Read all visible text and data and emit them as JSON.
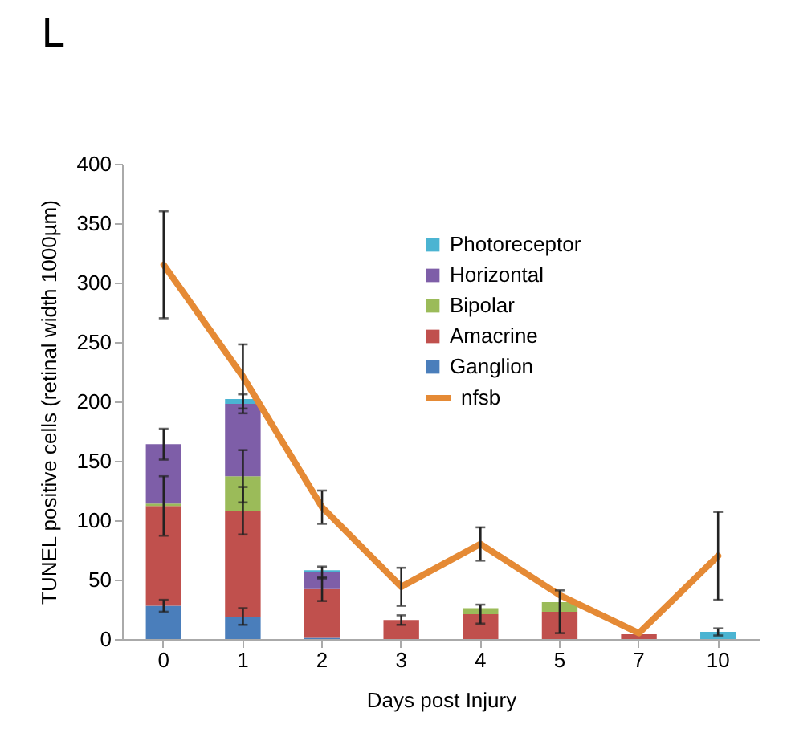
{
  "chart_data": {
    "type": "bar",
    "title": "L",
    "xlabel": "Days post Injury",
    "ylabel": "TUNEL positive cells (retinal width 1000µm)",
    "categories": [
      "0",
      "1",
      "2",
      "3",
      "4",
      "5",
      "7",
      "10"
    ],
    "stacked": true,
    "ylim": [
      0,
      400
    ],
    "yticks": [
      0,
      50,
      100,
      150,
      200,
      250,
      300,
      350,
      400
    ],
    "grid": false,
    "legend": "top right",
    "series": [
      {
        "name": "Ganglion",
        "color": "#4a7ebb",
        "values": [
          28,
          19,
          1,
          0,
          0,
          0,
          0,
          0
        ],
        "errors": [
          5,
          7,
          null,
          null,
          null,
          null,
          null,
          null
        ]
      },
      {
        "name": "Amacrine",
        "color": "#c0504d",
        "values": [
          84,
          89,
          41,
          16,
          21,
          23,
          4,
          0
        ],
        "errors": [
          25,
          20,
          10,
          4,
          8,
          18,
          null,
          null
        ]
      },
      {
        "name": "Bipolar",
        "color": "#9bbb59",
        "values": [
          2,
          29,
          0,
          0,
          5,
          8,
          0,
          0
        ],
        "errors": [
          null,
          22,
          null,
          null,
          null,
          null,
          null,
          null
        ]
      },
      {
        "name": "Horizontal",
        "color": "#7e5ea8",
        "values": [
          50,
          61,
          14,
          0,
          0,
          0,
          0,
          0
        ],
        "errors": [
          13,
          8,
          5,
          null,
          null,
          null,
          null,
          null
        ]
      },
      {
        "name": "Photoreceptor",
        "color": "#4bb4d2",
        "values": [
          0,
          4,
          2,
          0,
          0,
          0,
          0,
          6
        ],
        "errors": [
          null,
          null,
          null,
          null,
          null,
          null,
          null,
          3
        ]
      },
      {
        "name": "nfsb",
        "type": "line",
        "color": "#e58a35",
        "values": [
          315,
          221,
          111,
          44,
          80,
          37,
          5,
          70
        ],
        "errors": [
          45,
          27,
          14,
          16,
          14,
          null,
          null,
          37
        ]
      }
    ]
  }
}
